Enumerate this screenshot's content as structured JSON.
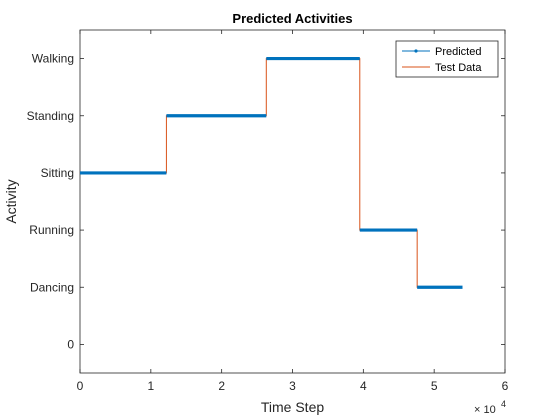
{
  "chart_data": {
    "type": "line",
    "title": "Predicted Activities",
    "xlabel": "Time Step",
    "ylabel": "Activity",
    "x_exponent_base": "× 10",
    "x_exponent_power": "4",
    "xlim": [
      0,
      6
    ],
    "ylim": [
      -0.5,
      5.5
    ],
    "x_ticks": [
      0,
      1,
      2,
      3,
      4,
      5,
      6
    ],
    "x_tick_labels": [
      "0",
      "1",
      "2",
      "3",
      "4",
      "5",
      "6"
    ],
    "y_ticks": [
      0,
      1,
      2,
      3,
      4,
      5
    ],
    "y_tick_labels": [
      "0",
      "Dancing",
      "Running",
      "Sitting",
      "Standing",
      "Walking"
    ],
    "grid": false,
    "legend_position": "top-right",
    "series": [
      {
        "name": "Predicted",
        "color": "#0072BD",
        "marker": "dot",
        "segments": [
          {
            "x_start": 0,
            "x_end": 1.22,
            "y": 3
          },
          {
            "x_start": 1.22,
            "x_end": 2.63,
            "y": 4
          },
          {
            "x_start": 2.63,
            "x_end": 3.95,
            "y": 5
          },
          {
            "x_start": 3.95,
            "x_end": 4.76,
            "y": 2
          },
          {
            "x_start": 4.76,
            "x_end": 5.4,
            "y": 1
          }
        ]
      },
      {
        "name": "Test Data",
        "color": "#D95319",
        "marker": "none",
        "segments": [
          {
            "x_start": 0,
            "x_end": 1.22,
            "y": 3
          },
          {
            "x_start": 1.22,
            "x_end": 2.63,
            "y": 4
          },
          {
            "x_start": 2.63,
            "x_end": 3.95,
            "y": 5
          },
          {
            "x_start": 3.95,
            "x_end": 4.76,
            "y": 2
          },
          {
            "x_start": 4.76,
            "x_end": 5.4,
            "y": 1
          }
        ]
      }
    ]
  }
}
